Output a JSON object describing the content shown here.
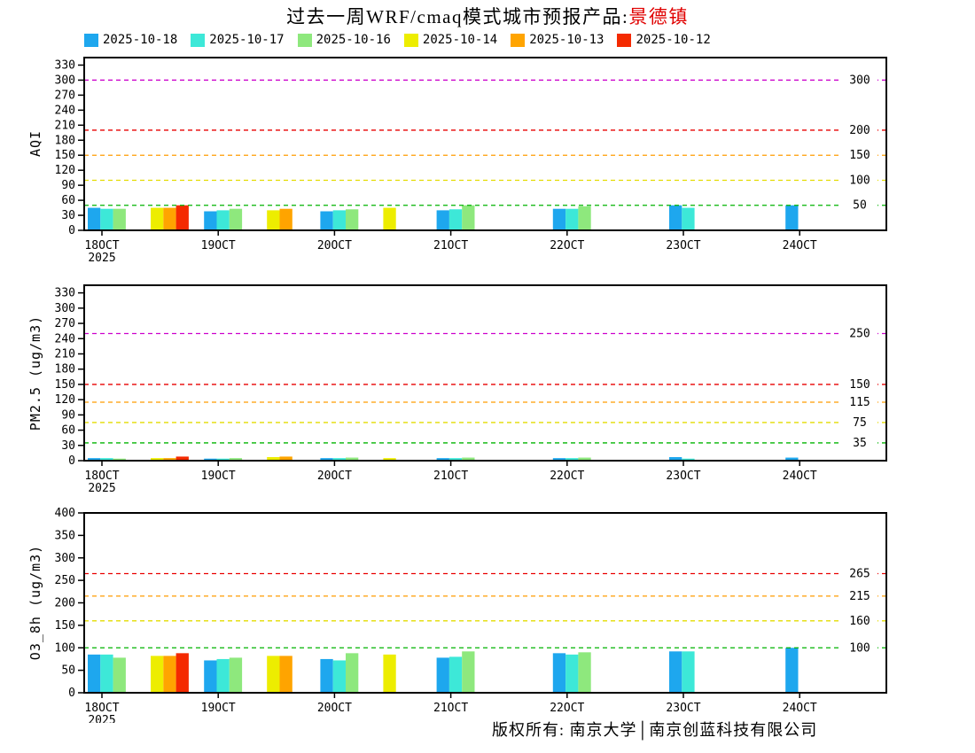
{
  "title": {
    "main": "过去一周WRF/cmaq模式城市预报产品:",
    "city": "景德镇"
  },
  "legend": [
    {
      "label": "2025-10-18",
      "color": "#1ea7ee"
    },
    {
      "label": "2025-10-17",
      "color": "#3de8d8"
    },
    {
      "label": "2025-10-16",
      "color": "#8ee87d"
    },
    {
      "label": "2025-10-14",
      "color": "#eded00"
    },
    {
      "label": "2025-10-13",
      "color": "#ffa400"
    },
    {
      "label": "2025-10-12",
      "color": "#f42a00"
    }
  ],
  "footer": {
    "text": "版权所有: 南京大学│南京创蓝科技有限公司"
  },
  "chart_data": [
    {
      "type": "bar",
      "ylabel": "AQI",
      "ylim": [
        0,
        345
      ],
      "yticks": [
        0,
        30,
        60,
        90,
        120,
        150,
        180,
        210,
        240,
        270,
        300,
        330
      ],
      "categories": [
        "18OCT",
        "19OCT",
        "20OCT",
        "21OCT",
        "22OCT",
        "23OCT",
        "24OCT"
      ],
      "year_label": "2025",
      "grid": "off",
      "legend_position": "top",
      "ref_lines": [
        {
          "value": 50,
          "color": "#00b400",
          "label": "50"
        },
        {
          "value": 100,
          "color": "#e3dc00",
          "label": "100"
        },
        {
          "value": 150,
          "color": "#ff9c00",
          "label": "150"
        },
        {
          "value": 200,
          "color": "#e80000",
          "label": "200"
        },
        {
          "value": 300,
          "color": "#cc00cc",
          "label": "300"
        }
      ],
      "series": [
        {
          "name": "2025-10-18",
          "color": "#1ea7ee",
          "values": [
            45,
            38,
            38,
            40,
            43,
            50,
            50
          ]
        },
        {
          "name": "2025-10-17",
          "color": "#3de8d8",
          "values": [
            43,
            40,
            40,
            42,
            43,
            45,
            null
          ]
        },
        {
          "name": "2025-10-16",
          "color": "#8ee87d",
          "values": [
            43,
            43,
            42,
            50,
            48,
            null,
            null
          ]
        },
        {
          "name": "2025-10-14",
          "color": "#eded00",
          "values": [
            45,
            40,
            45,
            null,
            null,
            null,
            null
          ]
        },
        {
          "name": "2025-10-13",
          "color": "#ffa400",
          "values": [
            45,
            43,
            null,
            null,
            null,
            null,
            null
          ]
        },
        {
          "name": "2025-10-12",
          "color": "#f42a00",
          "values": [
            50,
            null,
            null,
            null,
            null,
            null,
            null
          ]
        }
      ]
    },
    {
      "type": "bar",
      "ylabel": "PM2.5 (ug/m3)",
      "ylim": [
        0,
        345
      ],
      "yticks": [
        0,
        30,
        60,
        90,
        120,
        150,
        180,
        210,
        240,
        270,
        300,
        330
      ],
      "categories": [
        "18OCT",
        "19OCT",
        "20OCT",
        "21OCT",
        "22OCT",
        "23OCT",
        "24OCT"
      ],
      "year_label": "2025",
      "grid": "off",
      "legend_position": "top",
      "ref_lines": [
        {
          "value": 35,
          "color": "#00b400",
          "label": "35"
        },
        {
          "value": 75,
          "color": "#e3dc00",
          "label": "75"
        },
        {
          "value": 115,
          "color": "#ff9c00",
          "label": "115"
        },
        {
          "value": 150,
          "color": "#e80000",
          "label": "150"
        },
        {
          "value": 250,
          "color": "#cc00cc",
          "label": "250"
        }
      ],
      "series": [
        {
          "name": "2025-10-18",
          "color": "#1ea7ee",
          "values": [
            5,
            4,
            5,
            5,
            5,
            7,
            6
          ]
        },
        {
          "name": "2025-10-17",
          "color": "#3de8d8",
          "values": [
            5,
            4,
            5,
            5,
            5,
            4,
            null
          ]
        },
        {
          "name": "2025-10-16",
          "color": "#8ee87d",
          "values": [
            4,
            5,
            6,
            6,
            6,
            null,
            null
          ]
        },
        {
          "name": "2025-10-14",
          "color": "#eded00",
          "values": [
            5,
            7,
            5,
            null,
            null,
            null,
            null
          ]
        },
        {
          "name": "2025-10-13",
          "color": "#ffa400",
          "values": [
            5,
            8,
            null,
            null,
            null,
            null,
            null
          ]
        },
        {
          "name": "2025-10-12",
          "color": "#f42a00",
          "values": [
            8,
            null,
            null,
            null,
            null,
            null,
            null
          ]
        }
      ]
    },
    {
      "type": "bar",
      "ylabel": "O3_8h (ug/m3)",
      "ylim": [
        0,
        400
      ],
      "yticks": [
        0,
        50,
        100,
        150,
        200,
        250,
        300,
        350,
        400
      ],
      "categories": [
        "18OCT",
        "19OCT",
        "20OCT",
        "21OCT",
        "22OCT",
        "23OCT",
        "24OCT"
      ],
      "year_label": "2025",
      "grid": "off",
      "legend_position": "top",
      "ref_lines": [
        {
          "value": 100,
          "color": "#00b400",
          "label": "100"
        },
        {
          "value": 160,
          "color": "#e3dc00",
          "label": "160"
        },
        {
          "value": 215,
          "color": "#ff9c00",
          "label": "215"
        },
        {
          "value": 265,
          "color": "#e80000",
          "label": "265"
        }
      ],
      "series": [
        {
          "name": "2025-10-18",
          "color": "#1ea7ee",
          "values": [
            85,
            72,
            75,
            78,
            88,
            92,
            100
          ]
        },
        {
          "name": "2025-10-17",
          "color": "#3de8d8",
          "values": [
            85,
            75,
            72,
            80,
            85,
            92,
            null
          ]
        },
        {
          "name": "2025-10-16",
          "color": "#8ee87d",
          "values": [
            78,
            78,
            88,
            92,
            90,
            null,
            null
          ]
        },
        {
          "name": "2025-10-14",
          "color": "#eded00",
          "values": [
            82,
            82,
            85,
            null,
            null,
            null,
            null
          ]
        },
        {
          "name": "2025-10-13",
          "color": "#ffa400",
          "values": [
            82,
            82,
            null,
            null,
            null,
            null,
            null
          ]
        },
        {
          "name": "2025-10-12",
          "color": "#f42a00",
          "values": [
            88,
            null,
            null,
            null,
            null,
            null,
            null
          ]
        }
      ]
    }
  ]
}
